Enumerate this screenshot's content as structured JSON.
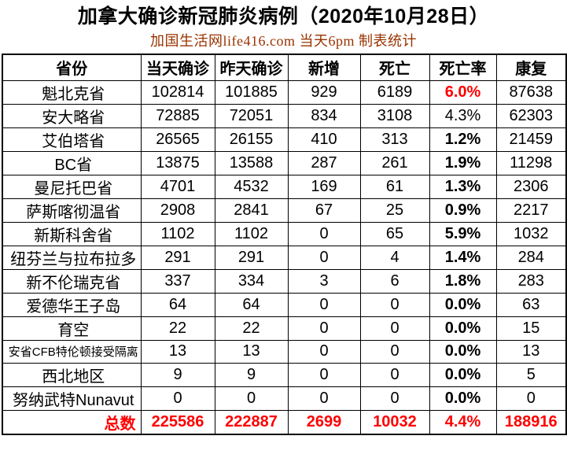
{
  "title": "加拿大确诊新冠肺炎病例（2020年10月28日）",
  "subtitle": "加国生活网life416.com 当天6pm 制表统计",
  "colors": {
    "highlight_red": "#ff0000",
    "subtitle_brown": "#993300",
    "border_black": "#000000",
    "background": "#ffffff"
  },
  "table": {
    "headers": [
      "省份",
      "当天确诊",
      "昨天确诊",
      "新增",
      "死亡",
      "死亡率",
      "康复"
    ],
    "rows": [
      {
        "province": "魁北克省",
        "today": "102814",
        "yesterday": "101885",
        "new_cases": "929",
        "deaths": "6189",
        "death_rate": "6.0%",
        "recovered": "87638",
        "rate_red": true,
        "rate_bold": true
      },
      {
        "province": "安大略省",
        "today": "72885",
        "yesterday": "72051",
        "new_cases": "834",
        "deaths": "3108",
        "death_rate": "4.3%",
        "recovered": "62303",
        "rate_red": false,
        "rate_bold": false
      },
      {
        "province": "艾伯塔省",
        "today": "26565",
        "yesterday": "26155",
        "new_cases": "410",
        "deaths": "313",
        "death_rate": "1.2%",
        "recovered": "21459",
        "rate_red": false,
        "rate_bold": true
      },
      {
        "province": "BC省",
        "today": "13875",
        "yesterday": "13588",
        "new_cases": "287",
        "deaths": "261",
        "death_rate": "1.9%",
        "recovered": "11298",
        "rate_red": false,
        "rate_bold": true
      },
      {
        "province": "曼尼托巴省",
        "today": "4701",
        "yesterday": "4532",
        "new_cases": "169",
        "deaths": "61",
        "death_rate": "1.3%",
        "recovered": "2306",
        "rate_red": false,
        "rate_bold": true
      },
      {
        "province": "萨斯喀彻温省",
        "today": "2908",
        "yesterday": "2841",
        "new_cases": "67",
        "deaths": "25",
        "death_rate": "0.9%",
        "recovered": "2217",
        "rate_red": false,
        "rate_bold": true
      },
      {
        "province": "新斯科舍省",
        "today": "1102",
        "yesterday": "1102",
        "new_cases": "0",
        "deaths": "65",
        "death_rate": "5.9%",
        "recovered": "1032",
        "rate_red": false,
        "rate_bold": true
      },
      {
        "province": "纽芬兰与拉布拉多",
        "today": "291",
        "yesterday": "291",
        "new_cases": "0",
        "deaths": "4",
        "death_rate": "1.4%",
        "recovered": "284",
        "rate_red": false,
        "rate_bold": true
      },
      {
        "province": "新不伦瑞克省",
        "today": "337",
        "yesterday": "334",
        "new_cases": "3",
        "deaths": "6",
        "death_rate": "1.8%",
        "recovered": "283",
        "rate_red": false,
        "rate_bold": true
      },
      {
        "province": "爱德华王子岛",
        "today": "64",
        "yesterday": "64",
        "new_cases": "0",
        "deaths": "0",
        "death_rate": "0.0%",
        "recovered": "63",
        "rate_red": false,
        "rate_bold": true
      },
      {
        "province": "育空",
        "today": "22",
        "yesterday": "22",
        "new_cases": "0",
        "deaths": "0",
        "death_rate": "0.0%",
        "recovered": "15",
        "rate_red": false,
        "rate_bold": true
      },
      {
        "province": "安省CFB特伦顿接受隔离",
        "today": "13",
        "yesterday": "13",
        "new_cases": "0",
        "deaths": "0",
        "death_rate": "0.0%",
        "recovered": "13",
        "rate_red": false,
        "rate_bold": true,
        "small_name": true
      },
      {
        "province": "西北地区",
        "today": "9",
        "yesterday": "9",
        "new_cases": "0",
        "deaths": "0",
        "death_rate": "0.0%",
        "recovered": "5",
        "rate_red": false,
        "rate_bold": true
      },
      {
        "province": "努纳武特Nunavut",
        "today": "0",
        "yesterday": "0",
        "new_cases": "0",
        "deaths": "0",
        "death_rate": "0.0%",
        "recovered": "0",
        "rate_red": false,
        "rate_bold": true
      }
    ],
    "total_row": {
      "label": "总数",
      "today": "225586",
      "yesterday": "222887",
      "new_cases": "2699",
      "deaths": "10032",
      "death_rate": "4.4%",
      "recovered": "188916"
    }
  },
  "chart_data": {
    "type": "table",
    "title": "加拿大确诊新冠肺炎病例（2020年10月28日）",
    "subtitle": "加国生活网life416.com 当天6pm 制表统计",
    "columns": [
      "省份",
      "当天确诊",
      "昨天确诊",
      "新增",
      "死亡",
      "死亡率",
      "康复"
    ],
    "rows": [
      [
        "魁北克省",
        102814,
        101885,
        929,
        6189,
        "6.0%",
        87638
      ],
      [
        "安大略省",
        72885,
        72051,
        834,
        3108,
        "4.3%",
        62303
      ],
      [
        "艾伯塔省",
        26565,
        26155,
        410,
        313,
        "1.2%",
        21459
      ],
      [
        "BC省",
        13875,
        13588,
        287,
        261,
        "1.9%",
        11298
      ],
      [
        "曼尼托巴省",
        4701,
        4532,
        169,
        61,
        "1.3%",
        2306
      ],
      [
        "萨斯喀彻温省",
        2908,
        2841,
        67,
        25,
        "0.9%",
        2217
      ],
      [
        "新斯科舍省",
        1102,
        1102,
        0,
        65,
        "5.9%",
        1032
      ],
      [
        "纽芬兰与拉布拉多",
        291,
        291,
        0,
        4,
        "1.4%",
        284
      ],
      [
        "新不伦瑞克省",
        337,
        334,
        3,
        6,
        "1.8%",
        283
      ],
      [
        "爱德华王子岛",
        64,
        64,
        0,
        0,
        "0.0%",
        63
      ],
      [
        "育空",
        22,
        22,
        0,
        0,
        "0.0%",
        15
      ],
      [
        "安省CFB特伦顿接受隔离",
        13,
        13,
        0,
        0,
        "0.0%",
        13
      ],
      [
        "西北地区",
        9,
        9,
        0,
        0,
        "0.0%",
        5
      ],
      [
        "努纳武特Nunavut",
        0,
        0,
        0,
        0,
        "0.0%",
        0
      ],
      [
        "总数",
        225586,
        222887,
        2699,
        10032,
        "4.4%",
        188916
      ]
    ],
    "total_row_highlighted_red": true
  }
}
